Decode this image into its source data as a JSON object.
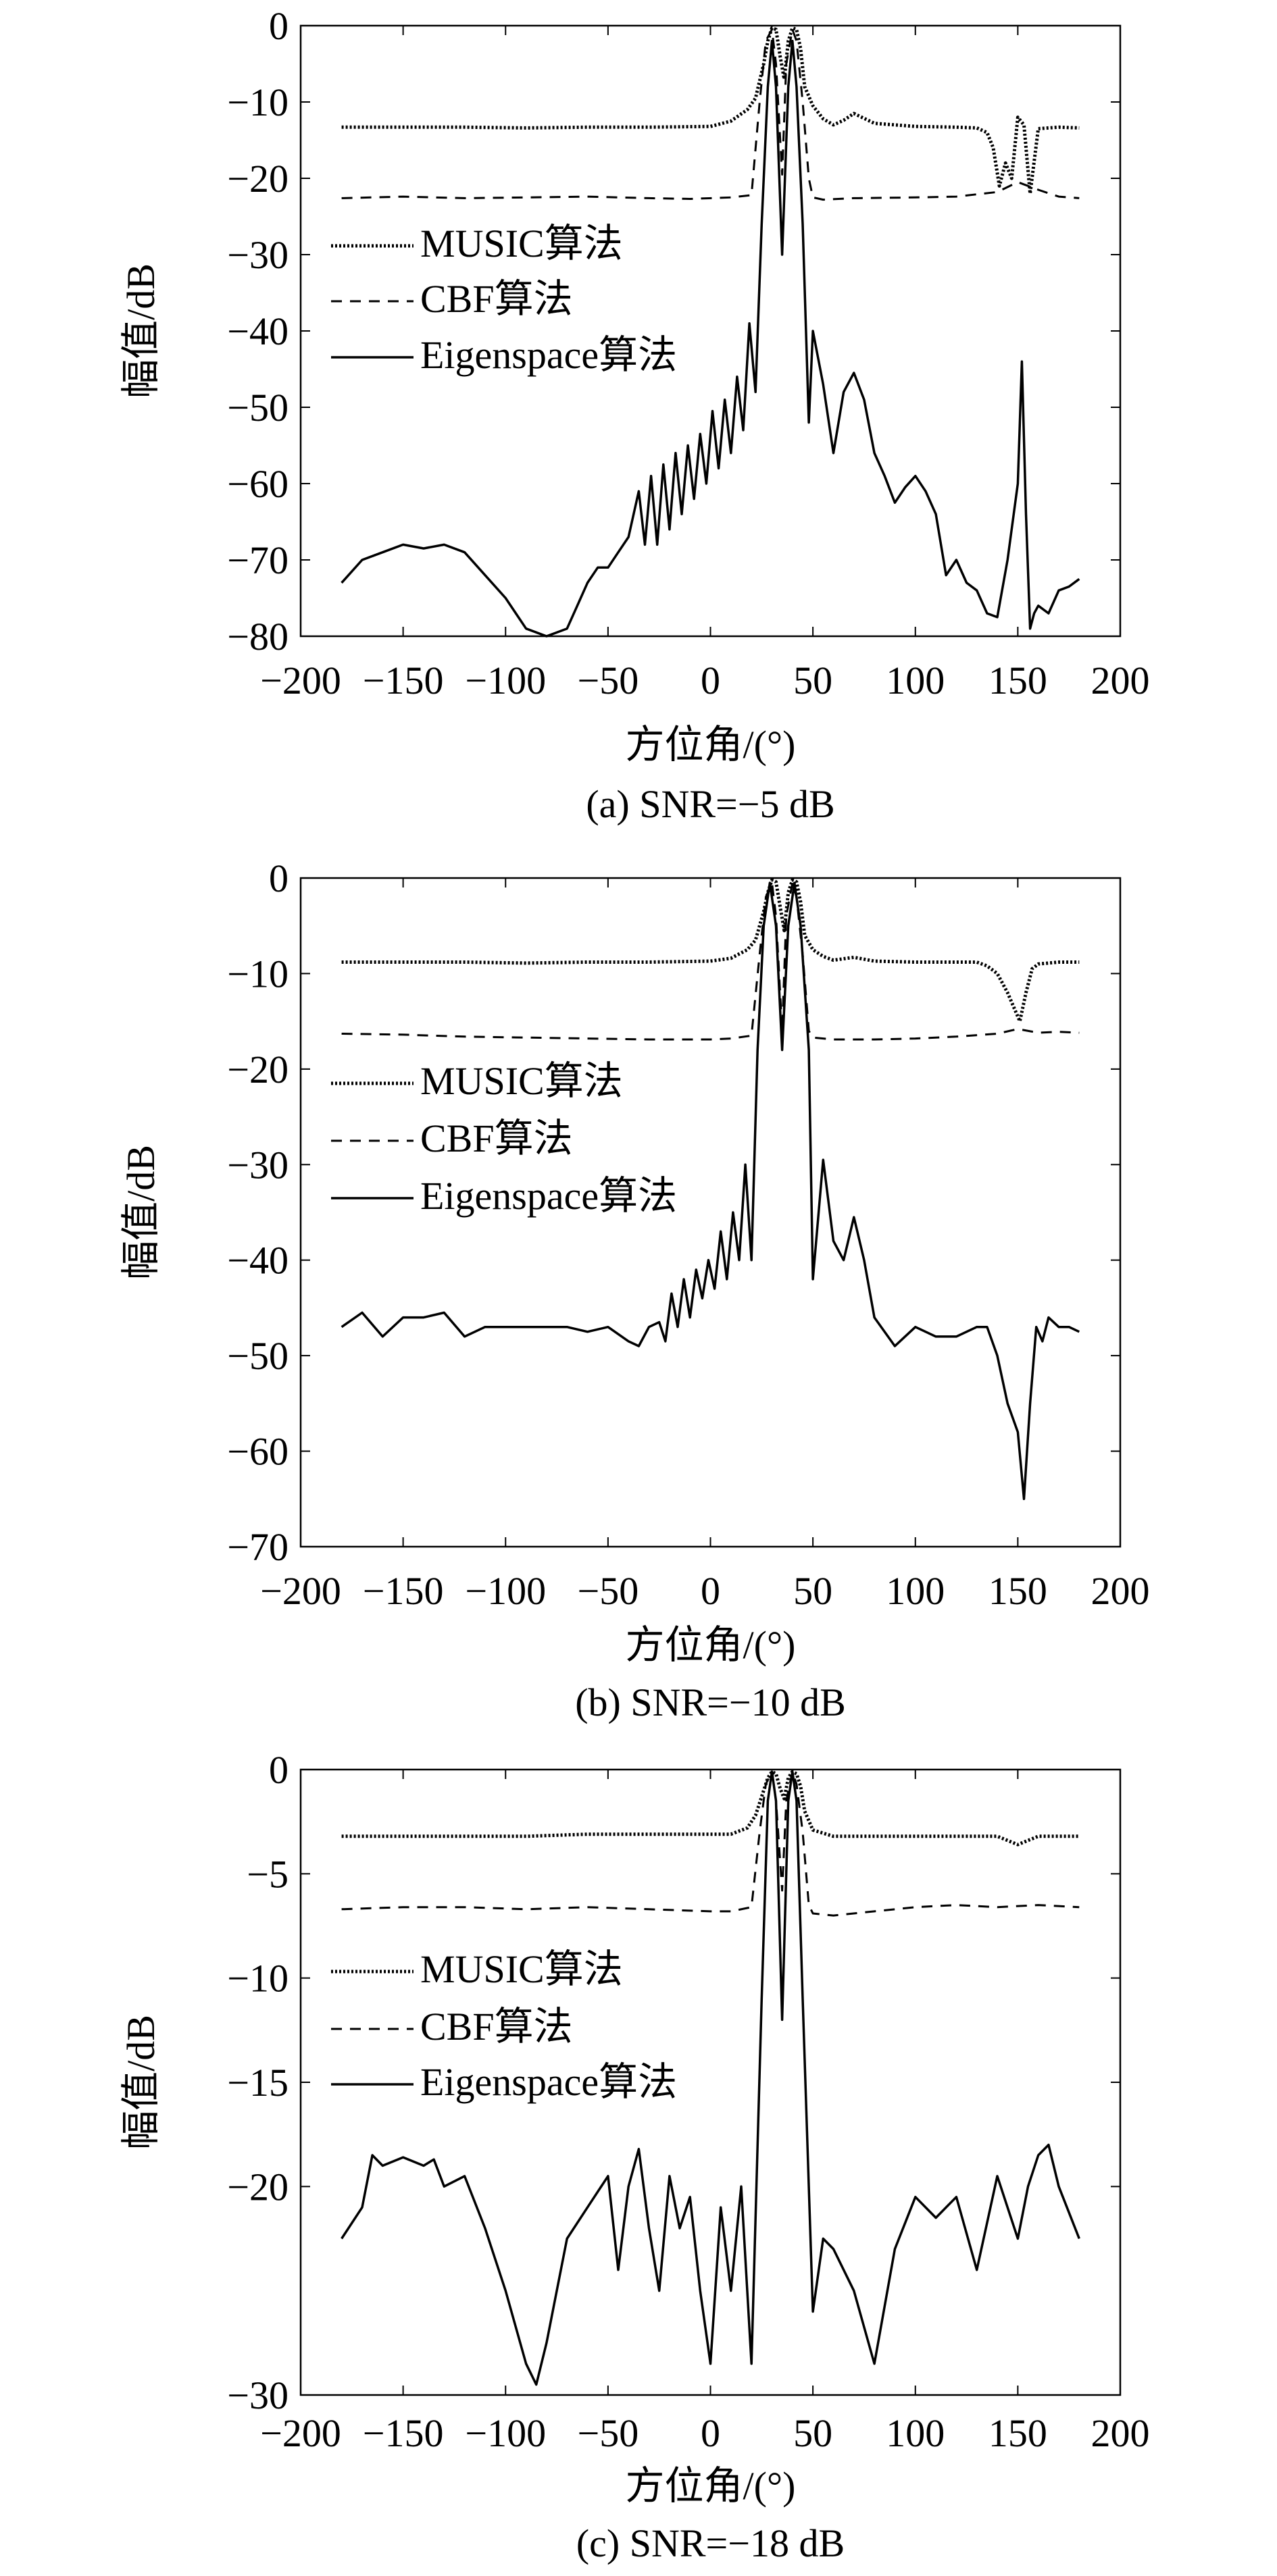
{
  "figure": {
    "charts": [
      {
        "caption": "(a) SNR=−5 dB",
        "ylabel": "幅值/dB",
        "xlabel": "方位角/(°)",
        "xticks": [
          "−200",
          "−150",
          "−100",
          "−50",
          "0",
          "50",
          "100",
          "150",
          "200"
        ],
        "yticks": [
          "0",
          "−10",
          "−20",
          "−30",
          "−40",
          "−50",
          "−60",
          "−70",
          "−80"
        ],
        "legend": [
          "MUSIC算法",
          "CBF算法",
          "Eigenspace算法"
        ]
      },
      {
        "caption": "(b) SNR=−10 dB",
        "ylabel": "幅值/dB",
        "xlabel": "方位角/(°)",
        "xticks": [
          "−200",
          "−150",
          "−100",
          "−50",
          "0",
          "50",
          "100",
          "150",
          "200"
        ],
        "yticks": [
          "0",
          "−10",
          "−20",
          "−30",
          "−40",
          "−50",
          "−60",
          "−70"
        ],
        "legend": [
          "MUSIC算法",
          "CBF算法",
          "Eigenspace算法"
        ]
      },
      {
        "caption": "(c) SNR=−18 dB",
        "ylabel": "幅值/dB",
        "xlabel": "方位角/(°)",
        "xticks": [
          "−200",
          "−150",
          "−100",
          "−50",
          "0",
          "50",
          "100",
          "150",
          "200"
        ],
        "yticks": [
          "0",
          "−5",
          "−10",
          "−15",
          "−20",
          "−30"
        ],
        "legend": [
          "MUSIC算法",
          "CBF算法",
          "Eigenspace算法"
        ]
      }
    ]
  },
  "chart_data": [
    {
      "type": "line",
      "title": "(a) SNR=−5 dB",
      "xlabel": "方位角/(°)",
      "ylabel": "幅值/dB",
      "xlim": [
        -200,
        200
      ],
      "ylim": [
        -80,
        0
      ],
      "yticks": [
        0,
        -10,
        -20,
        -30,
        -40,
        -50,
        -60,
        -70,
        -80
      ],
      "legend_position": "center-left",
      "grid": false,
      "series": [
        {
          "name": "MUSIC算法",
          "style": "dotted",
          "x": [
            -180,
            -150,
            -120,
            -90,
            -60,
            -30,
            0,
            10,
            18,
            22,
            26,
            28,
            30,
            32,
            34,
            36,
            38,
            40,
            42,
            44,
            46,
            50,
            55,
            60,
            65,
            70,
            80,
            100,
            120,
            130,
            135,
            138,
            141,
            144,
            147,
            150,
            153,
            156,
            160,
            170,
            180
          ],
          "y": [
            -13.3,
            -13.3,
            -13.3,
            -13.4,
            -13.3,
            -13.3,
            -13.2,
            -12.5,
            -11,
            -9.5,
            -5,
            -2,
            -0.3,
            -0.5,
            -4,
            -7,
            -2,
            -0.3,
            -0.5,
            -3,
            -8,
            -10.5,
            -12.2,
            -13,
            -12.4,
            -11.5,
            -12.8,
            -13.2,
            -13.3,
            -13.4,
            -14,
            -16,
            -21,
            -18,
            -20,
            -12,
            -13,
            -22,
            -13.5,
            -13.3,
            -13.4
          ]
        },
        {
          "name": "CBF算法",
          "style": "dashed",
          "x": [
            -180,
            -150,
            -120,
            -90,
            -60,
            -30,
            -10,
            10,
            20,
            24,
            27,
            30,
            32,
            35,
            37,
            40,
            42,
            45,
            48,
            50,
            55,
            70,
            100,
            120,
            140,
            150,
            160,
            170,
            180
          ],
          "y": [
            -22.6,
            -22.4,
            -22.6,
            -22.5,
            -22.4,
            -22.6,
            -22.7,
            -22.5,
            -22.2,
            -10,
            -2,
            -0.5,
            -5,
            -19.5,
            -5,
            -0.5,
            -2,
            -10,
            -20,
            -22.5,
            -22.8,
            -22.6,
            -22.5,
            -22.4,
            -21.8,
            -20.5,
            -21.5,
            -22.4,
            -22.6
          ]
        },
        {
          "name": "Eigenspace算法",
          "style": "solid",
          "x": [
            -180,
            -170,
            -160,
            -150,
            -140,
            -130,
            -120,
            -110,
            -100,
            -90,
            -80,
            -75,
            -70,
            -65,
            -60,
            -55,
            -50,
            -45,
            -40,
            -35,
            -32,
            -29,
            -26,
            -23,
            -20,
            -17,
            -14,
            -11,
            -8,
            -5,
            -2,
            1,
            4,
            7,
            10,
            13,
            16,
            19,
            22,
            25,
            28,
            30,
            32,
            35,
            38,
            40,
            42,
            45,
            48,
            50,
            55,
            60,
            65,
            70,
            75,
            80,
            85,
            90,
            95,
            100,
            105,
            110,
            115,
            120,
            125,
            130,
            135,
            140,
            145,
            150,
            152,
            154,
            156,
            158,
            160,
            165,
            170,
            175,
            180
          ],
          "y": [
            -73,
            -70,
            -69,
            -68,
            -68.5,
            -68,
            -69,
            -72,
            -75,
            -79,
            -80,
            -79.5,
            -79,
            -76,
            -73,
            -71,
            -71,
            -69,
            -67,
            -61,
            -68,
            -59,
            -68,
            -57.5,
            -66,
            -56,
            -64,
            -55,
            -62,
            -53.5,
            -60,
            -50.5,
            -58,
            -49,
            -56,
            -46,
            -53,
            -39,
            -48,
            -26,
            -8,
            -2,
            -8,
            -30,
            -8,
            -2,
            -8,
            -26,
            -52,
            -40,
            -47,
            -56,
            -48,
            -45.5,
            -49,
            -56,
            -59,
            -62.5,
            -60.5,
            -59,
            -61,
            -64,
            -72,
            -70,
            -73,
            -74,
            -77,
            -77.5,
            -70,
            -60,
            -44,
            -64,
            -79,
            -77,
            -76,
            -77,
            -74,
            -73.5,
            -72.5
          ]
        }
      ]
    },
    {
      "type": "line",
      "title": "(b) SNR=−10 dB",
      "xlabel": "方位角/(°)",
      "ylabel": "幅值/dB",
      "xlim": [
        -200,
        200
      ],
      "ylim": [
        -70,
        0
      ],
      "yticks": [
        0,
        -10,
        -20,
        -30,
        -40,
        -50,
        -60,
        -70
      ],
      "legend_position": "center-left",
      "grid": false,
      "series": [
        {
          "name": "MUSIC算法",
          "style": "dotted",
          "x": [
            -180,
            -150,
            -120,
            -90,
            -60,
            -30,
            0,
            10,
            18,
            22,
            26,
            28,
            30,
            32,
            34,
            36,
            38,
            40,
            42,
            44,
            46,
            50,
            55,
            60,
            70,
            80,
            100,
            120,
            130,
            135,
            140,
            145,
            148,
            151,
            154,
            157,
            160,
            170,
            180
          ],
          "y": [
            -8.8,
            -8.8,
            -8.8,
            -8.9,
            -8.8,
            -8.8,
            -8.7,
            -8.4,
            -7.5,
            -6.5,
            -3.5,
            -1.5,
            -0.2,
            -0.4,
            -3,
            -5.5,
            -1.5,
            -0.2,
            -0.4,
            -2.5,
            -6,
            -7.5,
            -8.2,
            -8.6,
            -8.3,
            -8.7,
            -8.8,
            -8.8,
            -8.8,
            -9.2,
            -10,
            -12,
            -13.5,
            -15,
            -12,
            -9.5,
            -9,
            -8.8,
            -8.8
          ]
        },
        {
          "name": "CBF算法",
          "style": "dashed",
          "x": [
            -180,
            -150,
            -120,
            -90,
            -60,
            -30,
            0,
            10,
            20,
            24,
            27,
            30,
            32,
            35,
            37,
            40,
            42,
            45,
            48,
            50,
            60,
            80,
            100,
            120,
            140,
            150,
            160,
            170,
            180
          ],
          "y": [
            -16.3,
            -16.4,
            -16.6,
            -16.7,
            -16.8,
            -16.9,
            -16.9,
            -16.8,
            -16.5,
            -8,
            -2,
            -0.5,
            -4,
            -16,
            -4,
            -0.5,
            -2,
            -8,
            -16,
            -16.7,
            -16.9,
            -16.9,
            -16.8,
            -16.6,
            -16.3,
            -15.8,
            -16.2,
            -16.1,
            -16.2
          ]
        },
        {
          "name": "Eigenspace算法",
          "style": "solid",
          "x": [
            -180,
            -170,
            -160,
            -150,
            -140,
            -130,
            -120,
            -110,
            -100,
            -90,
            -80,
            -70,
            -60,
            -50,
            -40,
            -35,
            -30,
            -25,
            -22,
            -19,
            -16,
            -13,
            -10,
            -7,
            -4,
            -1,
            2,
            5,
            8,
            11,
            14,
            17,
            20,
            23,
            26,
            29,
            32,
            35,
            38,
            41,
            44,
            48,
            50,
            55,
            60,
            65,
            70,
            75,
            80,
            90,
            100,
            110,
            120,
            130,
            135,
            140,
            145,
            150,
            153,
            156,
            159,
            162,
            165,
            170,
            175,
            180
          ],
          "y": [
            -47,
            -45.5,
            -48,
            -46,
            -46,
            -45.5,
            -48,
            -47,
            -47,
            -47,
            -47,
            -47,
            -47.5,
            -47,
            -48.5,
            -49,
            -47,
            -46.5,
            -48.5,
            -43.5,
            -47,
            -42,
            -46,
            -41,
            -44,
            -40,
            -43,
            -37,
            -42,
            -35,
            -40,
            -30,
            -40,
            -18,
            -5,
            -0.5,
            -5,
            -18,
            -5,
            -0.5,
            -5,
            -18,
            -42,
            -29.5,
            -38,
            -40,
            -35.5,
            -40,
            -46,
            -49,
            -47,
            -48,
            -48,
            -47,
            -47,
            -50,
            -55,
            -58,
            -65,
            -55,
            -47,
            -48.5,
            -46,
            -47,
            -47,
            -47.5
          ]
        }
      ]
    },
    {
      "type": "line",
      "title": "(c) SNR=−18 dB",
      "xlabel": "方位角/(°)",
      "ylabel": "幅值/dB",
      "xlim": [
        -200,
        200
      ],
      "ylim": [
        -30,
        0
      ],
      "yticks": [
        0,
        -5,
        -10,
        -15,
        -20,
        -30
      ],
      "legend_position": "center-left",
      "grid": false,
      "series": [
        {
          "name": "MUSIC算法",
          "style": "dotted",
          "x": [
            -180,
            -150,
            -120,
            -90,
            -60,
            -30,
            0,
            10,
            18,
            22,
            26,
            28,
            30,
            32,
            34,
            36,
            38,
            40,
            42,
            44,
            46,
            50,
            60,
            80,
            100,
            120,
            140,
            150,
            160,
            170,
            180
          ],
          "y": [
            -3.2,
            -3.2,
            -3.2,
            -3.2,
            -3.1,
            -3.1,
            -3.1,
            -3.1,
            -2.8,
            -2.2,
            -1,
            -0.4,
            -0.1,
            -0.2,
            -0.9,
            -1.4,
            -0.4,
            -0.1,
            -0.2,
            -0.8,
            -2,
            -2.9,
            -3.2,
            -3.2,
            -3.2,
            -3.2,
            -3.2,
            -3.6,
            -3.2,
            -3.2,
            -3.2
          ]
        },
        {
          "name": "CBF算法",
          "style": "dashed",
          "x": [
            -180,
            -150,
            -120,
            -90,
            -60,
            -30,
            0,
            10,
            20,
            24,
            27,
            30,
            32,
            35,
            37,
            40,
            42,
            45,
            48,
            50,
            60,
            80,
            100,
            120,
            140,
            160,
            180
          ],
          "y": [
            -6.7,
            -6.6,
            -6.6,
            -6.7,
            -6.6,
            -6.7,
            -6.8,
            -6.8,
            -6.6,
            -3,
            -0.7,
            -0.1,
            -1.5,
            -5.8,
            -1.5,
            -0.1,
            -0.7,
            -3,
            -6.5,
            -6.9,
            -7,
            -6.8,
            -6.6,
            -6.5,
            -6.6,
            -6.5,
            -6.6
          ]
        },
        {
          "name": "Eigenspace算法",
          "style": "solid",
          "x": [
            -180,
            -170,
            -165,
            -160,
            -150,
            -140,
            -135,
            -130,
            -120,
            -110,
            -100,
            -90,
            -85,
            -80,
            -70,
            -60,
            -50,
            -45,
            -40,
            -35,
            -30,
            -25,
            -20,
            -15,
            -10,
            -5,
            0,
            5,
            10,
            15,
            20,
            25,
            28,
            30,
            32,
            35,
            38,
            40,
            42,
            45,
            50,
            55,
            60,
            70,
            80,
            90,
            100,
            110,
            120,
            130,
            140,
            150,
            155,
            160,
            165,
            170,
            180
          ],
          "y": [
            -22.5,
            -21,
            -18.5,
            -19,
            -18.6,
            -19,
            -18.7,
            -20,
            -19.5,
            -22,
            -25,
            -28.5,
            -29.5,
            -27.5,
            -22.5,
            -21,
            -19.5,
            -24,
            -20,
            -18.2,
            -22,
            -25,
            -19.5,
            -22,
            -20.5,
            -25,
            -28.5,
            -21,
            -25,
            -20,
            -28.5,
            -11,
            -1.5,
            -0.1,
            -1.5,
            -12,
            -1.5,
            -0.1,
            -1.5,
            -11,
            -26,
            -22.5,
            -23,
            -25,
            -28.5,
            -23,
            -20.5,
            -21.5,
            -20.5,
            -24,
            -19.5,
            -22.5,
            -20,
            -18.5,
            -18,
            -20,
            -22.5
          ]
        }
      ]
    }
  ]
}
